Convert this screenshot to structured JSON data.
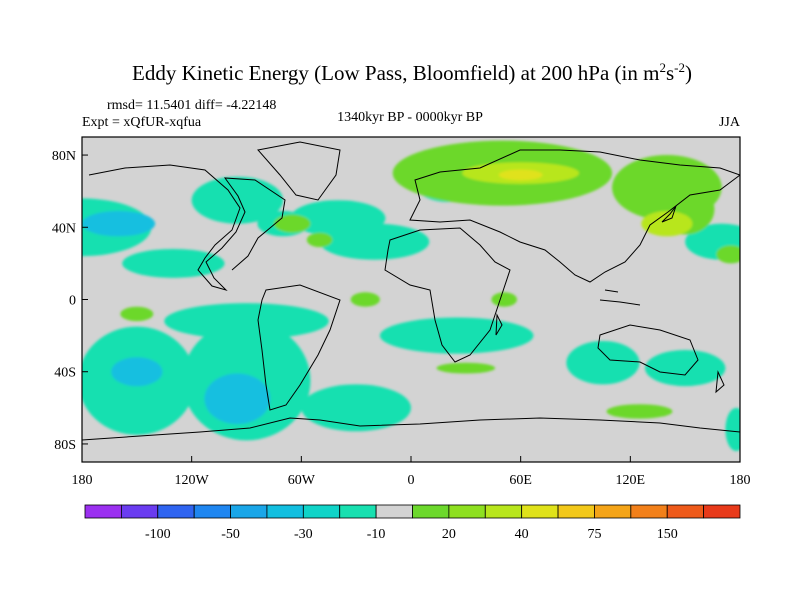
{
  "chart_data": {
    "type": "heatmap",
    "title": "Eddy Kinetic Energy (Low Pass, Bloomfield) at 200 hPa (in m",
    "title_sup1": "2",
    "title_mid": "s",
    "title_sup2": "-2",
    "title_end": ")",
    "stats": "rmsd= 11.5401 diff= -4.22148",
    "experiment": "Expt = xQfUR-xqfua",
    "period": "1340kyr BP - 0000kyr BP",
    "season": "JJA",
    "xlim": [
      -180,
      180
    ],
    "ylim": [
      -90,
      90
    ],
    "x_ticks": [
      {
        "value": -180,
        "label": "180"
      },
      {
        "value": -120,
        "label": "120W"
      },
      {
        "value": -60,
        "label": "60W"
      },
      {
        "value": 0,
        "label": "0"
      },
      {
        "value": 60,
        "label": "60E"
      },
      {
        "value": 120,
        "label": "120E"
      },
      {
        "value": 180,
        "label": "180"
      }
    ],
    "y_ticks": [
      {
        "value": 80,
        "label": "80N"
      },
      {
        "value": 40,
        "label": "40N"
      },
      {
        "value": 0,
        "label": "0"
      },
      {
        "value": -40,
        "label": "40S"
      },
      {
        "value": -80,
        "label": "80S"
      }
    ],
    "colorbar": {
      "colors": [
        "#9b30f0",
        "#6a3cf0",
        "#2f64f0",
        "#1f86f0",
        "#1aa6e8",
        "#12bfe0",
        "#10d4c8",
        "#18e0b0",
        "#d3d3d3",
        "#6cd82c",
        "#8ee020",
        "#b8e61c",
        "#e0e21a",
        "#f2c81a",
        "#f4a418",
        "#f2801a",
        "#ee5a1a",
        "#e83a1a"
      ],
      "labels": [
        {
          "after_index": 1,
          "label": "-100"
        },
        {
          "after_index": 3,
          "label": "-50"
        },
        {
          "after_index": 5,
          "label": "-30"
        },
        {
          "after_index": 7,
          "label": "-10"
        },
        {
          "after_index": 9,
          "label": "20"
        },
        {
          "after_index": 11,
          "label": "40"
        },
        {
          "after_index": 13,
          "label": "75"
        },
        {
          "after_index": 15,
          "label": "150"
        }
      ]
    },
    "regions": [
      {
        "level": "-10",
        "color": "#18e0b0",
        "lon": -180,
        "lat": 40,
        "rx": 38,
        "ry": 16
      },
      {
        "level": "-30",
        "color": "#12bfe0",
        "lon": -160,
        "lat": 42,
        "rx": 20,
        "ry": 7
      },
      {
        "level": "-10",
        "color": "#18e0b0",
        "lon": -95,
        "lat": 55,
        "rx": 25,
        "ry": 13
      },
      {
        "level": "-10",
        "color": "#18e0b0",
        "lon": -70,
        "lat": 42,
        "rx": 14,
        "ry": 7
      },
      {
        "level": "-10",
        "color": "#18e0b0",
        "lon": -40,
        "lat": 45,
        "rx": 26,
        "ry": 10
      },
      {
        "level": "-10",
        "color": "#18e0b0",
        "lon": -20,
        "lat": 32,
        "rx": 30,
        "ry": 10
      },
      {
        "level": "-10",
        "color": "#18e0b0",
        "lon": -130,
        "lat": 20,
        "rx": 28,
        "ry": 8
      },
      {
        "level": "-10",
        "color": "#18e0b0",
        "lon": 20,
        "lat": 62,
        "rx": 16,
        "ry": 8
      },
      {
        "level": "-10",
        "color": "#18e0b0",
        "lon": 170,
        "lat": 32,
        "rx": 20,
        "ry": 10
      },
      {
        "level": "-10",
        "color": "#18e0b0",
        "lon": -90,
        "lat": -12,
        "rx": 45,
        "ry": 10
      },
      {
        "level": "-10",
        "color": "#18e0b0",
        "lon": 25,
        "lat": -20,
        "rx": 42,
        "ry": 10
      },
      {
        "level": "-10",
        "color": "#18e0b0",
        "lon": 105,
        "lat": -35,
        "rx": 20,
        "ry": 12
      },
      {
        "level": "-10",
        "color": "#18e0b0",
        "lon": 150,
        "lat": -38,
        "rx": 22,
        "ry": 10
      },
      {
        "level": "-10",
        "color": "#18e0b0",
        "lon": -150,
        "lat": -45,
        "rx": 32,
        "ry": 30
      },
      {
        "level": "-10",
        "color": "#18e0b0",
        "lon": -90,
        "lat": -45,
        "rx": 35,
        "ry": 33
      },
      {
        "level": "-10",
        "color": "#18e0b0",
        "lon": -30,
        "lat": -60,
        "rx": 30,
        "ry": 13
      },
      {
        "level": "-30",
        "color": "#12bfe0",
        "lon": -95,
        "lat": -55,
        "rx": 18,
        "ry": 14
      },
      {
        "level": "-30",
        "color": "#12bfe0",
        "lon": -150,
        "lat": -40,
        "rx": 14,
        "ry": 8
      },
      {
        "level": "-10",
        "color": "#18e0b0",
        "lon": 178,
        "lat": -72,
        "rx": 6,
        "ry": 12
      },
      {
        "level": "20",
        "color": "#6cd82c",
        "lon": 50,
        "lat": 70,
        "rx": 60,
        "ry": 18
      },
      {
        "level": "20",
        "color": "#6cd82c",
        "lon": 140,
        "lat": 62,
        "rx": 30,
        "ry": 18
      },
      {
        "level": "20",
        "color": "#6cd82c",
        "lon": 150,
        "lat": 50,
        "rx": 16,
        "ry": 14
      },
      {
        "level": "40",
        "color": "#b8e61c",
        "lon": 60,
        "lat": 70,
        "rx": 32,
        "ry": 6
      },
      {
        "level": "40",
        "color": "#b8e61c",
        "lon": 140,
        "lat": 42,
        "rx": 14,
        "ry": 7
      },
      {
        "level": "75",
        "color": "#e0e21a",
        "lon": 60,
        "lat": 69,
        "rx": 12,
        "ry": 3
      },
      {
        "level": "20",
        "color": "#6cd82c",
        "lon": -65,
        "lat": 42,
        "rx": 10,
        "ry": 5
      },
      {
        "level": "20",
        "color": "#6cd82c",
        "lon": -50,
        "lat": 33,
        "rx": 7,
        "ry": 4
      },
      {
        "level": "20",
        "color": "#6cd82c",
        "lon": -25,
        "lat": 0,
        "rx": 8,
        "ry": 4
      },
      {
        "level": "20",
        "color": "#6cd82c",
        "lon": -150,
        "lat": -8,
        "rx": 9,
        "ry": 4
      },
      {
        "level": "20",
        "color": "#6cd82c",
        "lon": 51,
        "lat": 0,
        "rx": 7,
        "ry": 4
      },
      {
        "level": "20",
        "color": "#6cd82c",
        "lon": 30,
        "lat": -38,
        "rx": 16,
        "ry": 3
      },
      {
        "level": "20",
        "color": "#6cd82c",
        "lon": 125,
        "lat": -62,
        "rx": 18,
        "ry": 4
      },
      {
        "level": "20",
        "color": "#6cd82c",
        "lon": 175,
        "lat": 25,
        "rx": 8,
        "ry": 5
      }
    ]
  }
}
